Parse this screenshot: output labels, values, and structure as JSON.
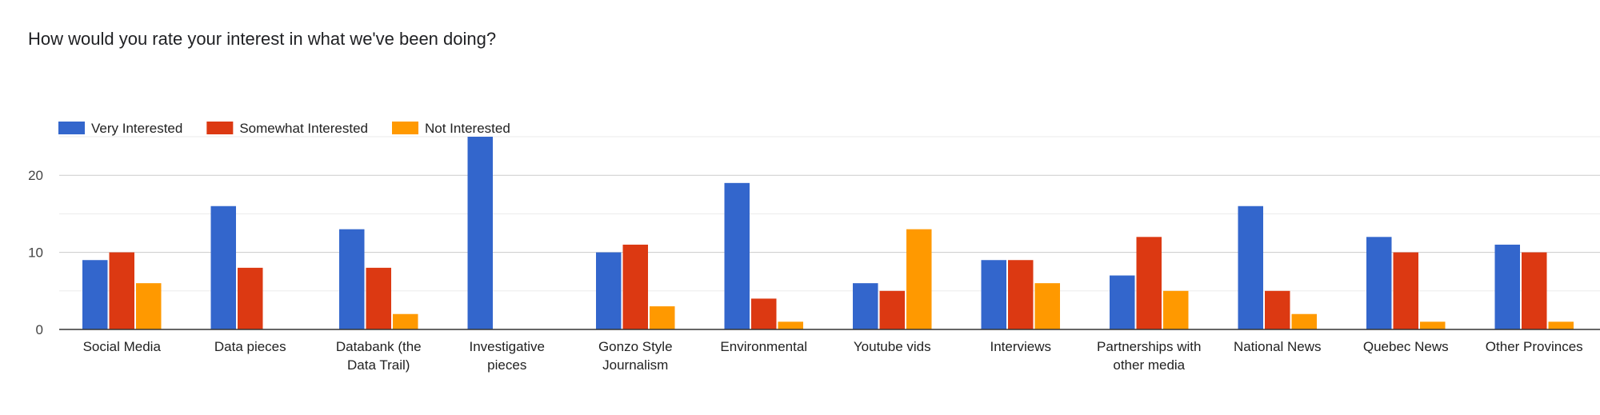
{
  "question": {
    "title": "How would you rate your interest in what we've been doing?"
  },
  "chart_data": {
    "type": "bar",
    "title": "",
    "xlabel": "",
    "ylabel": "",
    "ylim": [
      0,
      25
    ],
    "yticks": [
      0,
      10,
      20
    ],
    "grid": true,
    "legend_position": "top-left",
    "categories": [
      [
        "Social Media"
      ],
      [
        "Data pieces"
      ],
      [
        "Databank (the",
        "Data Trail)"
      ],
      [
        "Investigative",
        "pieces"
      ],
      [
        "Gonzo Style",
        "Journalism"
      ],
      [
        "Environmental"
      ],
      [
        "Youtube vids"
      ],
      [
        "Interviews"
      ],
      [
        "Partnerships with",
        "other media"
      ],
      [
        "National News"
      ],
      [
        "Quebec News"
      ],
      [
        "Other Provinces"
      ]
    ],
    "series": [
      {
        "name": "Very Interested",
        "color": "#3366cc",
        "values": [
          9,
          16,
          13,
          25,
          10,
          19,
          6,
          9,
          7,
          16,
          12,
          11
        ]
      },
      {
        "name": "Somewhat Interested",
        "color": "#dc3912",
        "values": [
          10,
          8,
          8,
          0,
          11,
          4,
          5,
          9,
          12,
          5,
          10,
          10
        ]
      },
      {
        "name": "Not Interested",
        "color": "#ff9900",
        "values": [
          6,
          0,
          2,
          0,
          3,
          1,
          13,
          6,
          5,
          2,
          1,
          1
        ]
      }
    ]
  }
}
